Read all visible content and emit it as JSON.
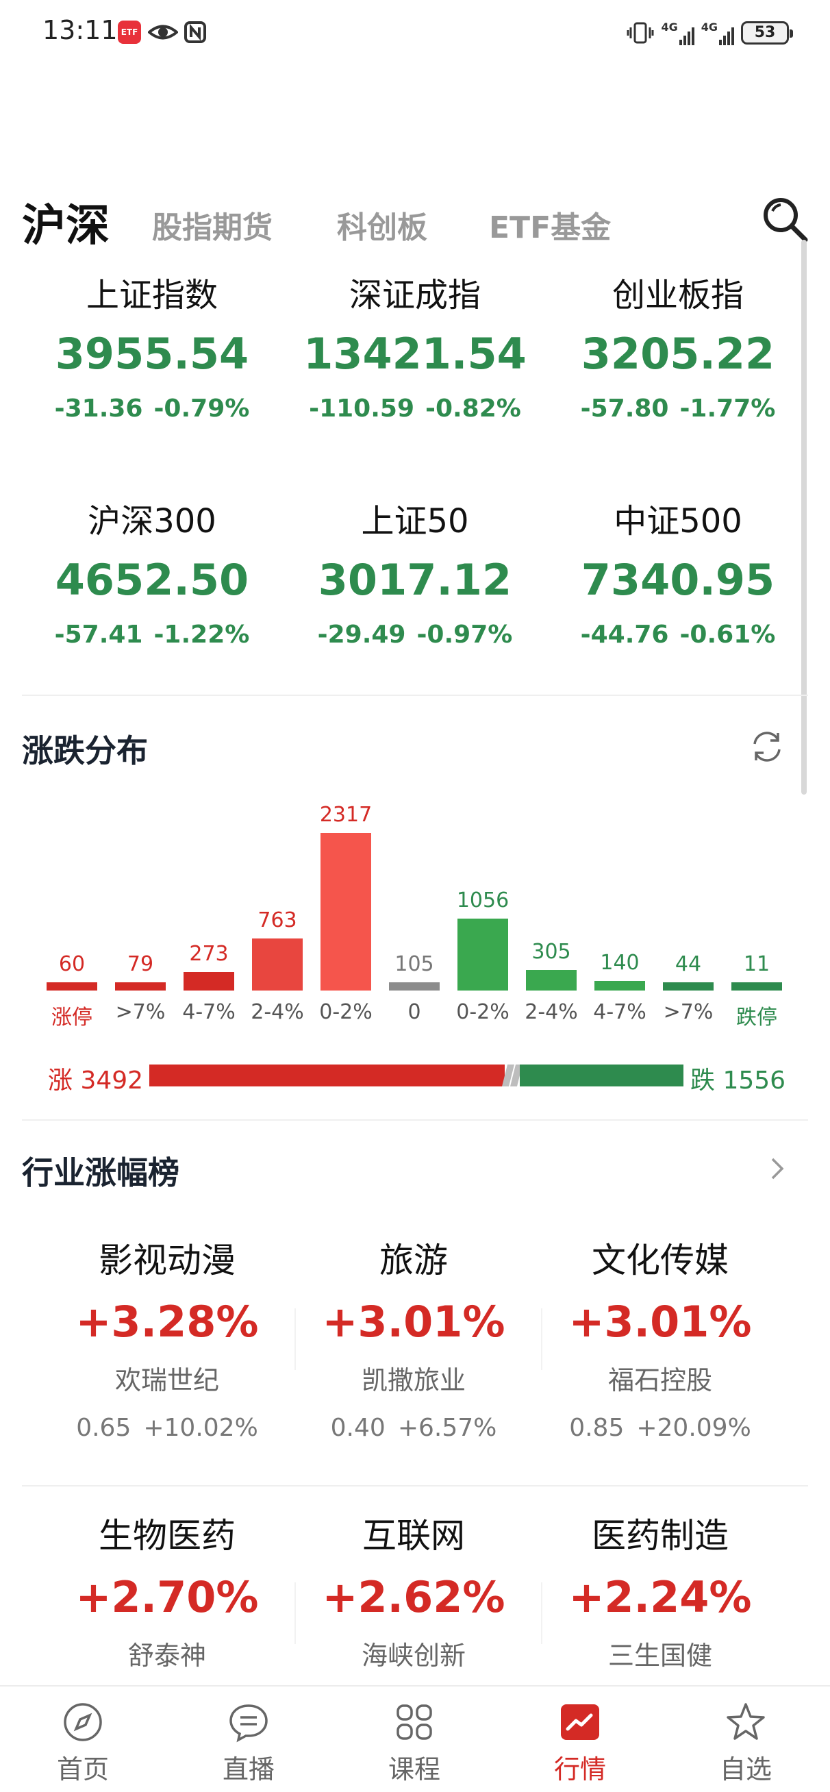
{
  "status_bar": {
    "time": "13:11",
    "app_badge": "ETF",
    "icons": [
      "app-badge-icon",
      "eye-icon",
      "nfc-icon",
      "vibrate-icon",
      "signal-4g-icon",
      "signal-4g-icon",
      "battery-icon"
    ],
    "signal_1": "4G",
    "signal_2": "4G",
    "battery": "53"
  },
  "top_tabs": [
    {
      "label": "沪深",
      "active": true
    },
    {
      "label": "股指期货",
      "active": false
    },
    {
      "label": "科创板",
      "active": false
    },
    {
      "label": "ETF基金",
      "active": false
    }
  ],
  "indices": [
    {
      "name": "上证指数",
      "value": "3955.54",
      "change": "-31.36",
      "pct": "-0.79%"
    },
    {
      "name": "深证成指",
      "value": "13421.54",
      "change": "-110.59",
      "pct": "-0.82%"
    },
    {
      "name": "创业板指",
      "value": "3205.22",
      "change": "-57.80",
      "pct": "-1.77%"
    },
    {
      "name": "沪深300",
      "value": "4652.50",
      "change": "-57.41",
      "pct": "-1.22%"
    },
    {
      "name": "上证50",
      "value": "3017.12",
      "change": "-29.49",
      "pct": "-0.97%"
    },
    {
      "name": "中证500",
      "value": "7340.95",
      "change": "-44.76",
      "pct": "-0.61%"
    }
  ],
  "distribution": {
    "title": "涨跌分布",
    "colors": {
      "up": "#d42a25",
      "up_bright": "#f5554c",
      "flat": "#8c8c8c",
      "down": "#3aa84f",
      "down_dark": "#2e8b4e"
    },
    "chart_data": {
      "type": "bar",
      "categories": [
        "涨停",
        ">7%",
        "4-7%",
        "2-4%",
        "0-2%",
        "0",
        "0-2%",
        "2-4%",
        "4-7%",
        ">7%",
        "跌停"
      ],
      "values": [
        60,
        79,
        273,
        763,
        2317,
        105,
        1056,
        305,
        140,
        44,
        11
      ],
      "value_labels": [
        "60",
        "79",
        "273",
        "763",
        "2317",
        "105",
        "1056",
        "305",
        "140",
        "44",
        "11"
      ],
      "groups": [
        "up",
        "up",
        "up",
        "up",
        "up",
        "flat",
        "down",
        "down",
        "down",
        "down",
        "down"
      ]
    },
    "up_label": "涨",
    "up_count": "3492",
    "down_label": "跌",
    "down_count": "1556",
    "up_total": 3492,
    "down_total": 1556
  },
  "industry": {
    "title": "行业涨幅榜",
    "items": [
      {
        "name": "影视动漫",
        "pct": "+3.28%",
        "stock": "欢瑞世纪",
        "price": "0.65",
        "stock_pct": "+10.02%"
      },
      {
        "name": "旅游",
        "pct": "+3.01%",
        "stock": "凯撒旅业",
        "price": "0.40",
        "stock_pct": "+6.57%"
      },
      {
        "name": "文化传媒",
        "pct": "+3.01%",
        "stock": "福石控股",
        "price": "0.85",
        "stock_pct": "+20.09%"
      },
      {
        "name": "生物医药",
        "pct": "+2.70%",
        "stock": "舒泰神",
        "price": "",
        "stock_pct": ""
      },
      {
        "name": "互联网",
        "pct": "+2.62%",
        "stock": "海峡创新",
        "price": "",
        "stock_pct": ""
      },
      {
        "name": "医药制造",
        "pct": "+2.24%",
        "stock": "三生国健",
        "price": "",
        "stock_pct": ""
      }
    ]
  },
  "bottom_nav": [
    {
      "label": "首页",
      "icon": "compass-icon",
      "active": false
    },
    {
      "label": "直播",
      "icon": "chat-icon",
      "active": false
    },
    {
      "label": "课程",
      "icon": "grid-icon",
      "active": false
    },
    {
      "label": "行情",
      "icon": "trend-chart-icon",
      "active": true
    },
    {
      "label": "自选",
      "icon": "star-icon",
      "active": false
    }
  ]
}
